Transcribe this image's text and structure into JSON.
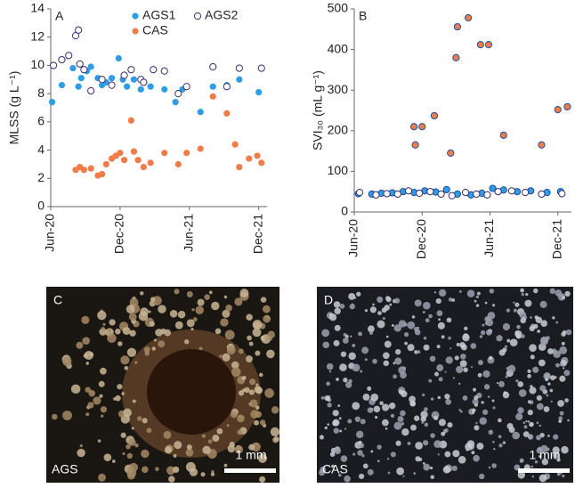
{
  "chart_data": [
    {
      "type": "scatter",
      "panel_label": "A",
      "ylabel": "MLSS (g L⁻¹)",
      "legend": "top-right",
      "xlim": [
        2020.42,
        2021.98
      ],
      "xticks": [
        {
          "value": 2020.42,
          "label": "Jun-20"
        },
        {
          "value": 2020.92,
          "label": "Dec-20"
        },
        {
          "value": 2021.42,
          "label": "Jun-21"
        },
        {
          "value": 2021.92,
          "label": "Dec-21"
        }
      ],
      "ylim": [
        0,
        14
      ],
      "yticks": [
        0,
        2,
        4,
        6,
        8,
        10,
        12,
        14
      ],
      "series": [
        {
          "name": "AGS1",
          "color": "#2e9de3",
          "marker": "filled",
          "x": [
            2020.43,
            2020.5,
            2020.58,
            2020.62,
            2020.64,
            2020.68,
            2020.71,
            2020.76,
            2020.79,
            2020.82,
            2020.86,
            2020.91,
            2020.94,
            2020.97,
            2021.02,
            2021.07,
            2021.14,
            2021.24,
            2021.32,
            2021.37,
            2021.5,
            2021.59,
            2021.69,
            2021.78,
            2021.92
          ],
          "values": [
            7.4,
            8.6,
            9.8,
            8.5,
            9.1,
            9.6,
            9.9,
            9.1,
            8.6,
            8.8,
            9.1,
            10.5,
            9.0,
            8.5,
            9.0,
            8.3,
            8.5,
            8.3,
            7.4,
            8.3,
            6.7,
            8.5,
            8.6,
            9.0,
            8.1
          ]
        },
        {
          "name": "AGS2",
          "color": "#3a2c6e",
          "marker": "open",
          "x": [
            2020.44,
            2020.5,
            2020.55,
            2020.6,
            2020.62,
            2020.63,
            2020.66,
            2020.71,
            2020.79,
            2020.86,
            2020.95,
            2021.0,
            2021.07,
            2021.09,
            2021.16,
            2021.24,
            2021.34,
            2021.4,
            2021.59,
            2021.69,
            2021.78,
            2021.94
          ],
          "values": [
            10.0,
            10.4,
            10.7,
            12.1,
            12.5,
            10.1,
            9.7,
            8.2,
            9.0,
            8.6,
            9.3,
            9.7,
            9.0,
            8.8,
            9.7,
            9.6,
            8.0,
            8.5,
            9.9,
            8.5,
            9.8,
            9.8
          ]
        },
        {
          "name": "CAS",
          "color": "#f07c4a",
          "marker": "filled",
          "x": [
            2020.6,
            2020.63,
            2020.66,
            2020.71,
            2020.76,
            2020.79,
            2020.82,
            2020.86,
            2020.89,
            2020.92,
            2020.95,
            2021.0,
            2021.02,
            2021.05,
            2021.09,
            2021.14,
            2021.24,
            2021.34,
            2021.4,
            2021.5,
            2021.59,
            2021.69,
            2021.75,
            2021.78,
            2021.85,
            2021.91,
            2021.94
          ],
          "values": [
            2.6,
            2.8,
            2.6,
            2.7,
            2.2,
            2.3,
            3.0,
            3.4,
            3.6,
            3.8,
            3.3,
            6.1,
            3.9,
            3.3,
            2.8,
            3.1,
            3.8,
            3.0,
            3.8,
            4.1,
            7.8,
            6.6,
            4.4,
            2.8,
            3.4,
            3.6,
            3.1
          ]
        }
      ]
    },
    {
      "type": "scatter",
      "panel_label": "B",
      "ylabel": "SVI₃₀ (mL g⁻¹)",
      "legend": "none",
      "xlim": [
        2020.42,
        2022.02
      ],
      "xticks": [
        {
          "value": 2020.42,
          "label": "Jun-20"
        },
        {
          "value": 2020.92,
          "label": "Dec-20"
        },
        {
          "value": 2021.42,
          "label": "Jun-21"
        },
        {
          "value": 2021.92,
          "label": "Dec-21"
        }
      ],
      "ylim": [
        0,
        500
      ],
      "yticks": [
        0,
        100,
        200,
        300,
        400,
        500
      ],
      "series": [
        {
          "name": "AGS1",
          "color": "#2e9de3",
          "marker": "filled",
          "x": [
            2020.45,
            2020.55,
            2020.62,
            2020.7,
            2020.78,
            2020.86,
            2020.94,
            2021.02,
            2021.1,
            2021.18,
            2021.28,
            2021.36,
            2021.44,
            2021.52,
            2021.62,
            2021.72,
            2021.84,
            2021.94
          ],
          "values": [
            45,
            44,
            46,
            47,
            50,
            48,
            52,
            49,
            55,
            44,
            42,
            46,
            58,
            54,
            50,
            52,
            48,
            50
          ]
        },
        {
          "name": "AGS2",
          "color": "#3a2c6e",
          "marker": "open",
          "x": [
            2020.46,
            2020.58,
            2020.66,
            2020.74,
            2020.82,
            2020.9,
            2020.98,
            2021.06,
            2021.14,
            2021.24,
            2021.32,
            2021.4,
            2021.48,
            2021.58,
            2021.68,
            2021.8,
            2021.95
          ],
          "values": [
            48,
            42,
            45,
            44,
            52,
            46,
            50,
            44,
            40,
            48,
            44,
            42,
            50,
            52,
            48,
            44,
            45
          ]
        },
        {
          "name": "CAS",
          "color": "#f07c4a",
          "marker": "filled",
          "x": [
            2020.86,
            2020.87,
            2020.92,
            2021.01,
            2021.13,
            2021.17,
            2021.18,
            2021.26,
            2021.35,
            2021.41,
            2021.52,
            2021.8,
            2021.92,
            2021.99
          ],
          "values": [
            210,
            165,
            210,
            237,
            145,
            380,
            456,
            478,
            412,
            412,
            189,
            165,
            252,
            259
          ]
        }
      ]
    }
  ],
  "panels": [
    {
      "letter": "C",
      "caption": "AGS",
      "scale_label": "1 mm"
    },
    {
      "letter": "D",
      "caption": "CAS",
      "scale_label": "1 mm"
    }
  ]
}
